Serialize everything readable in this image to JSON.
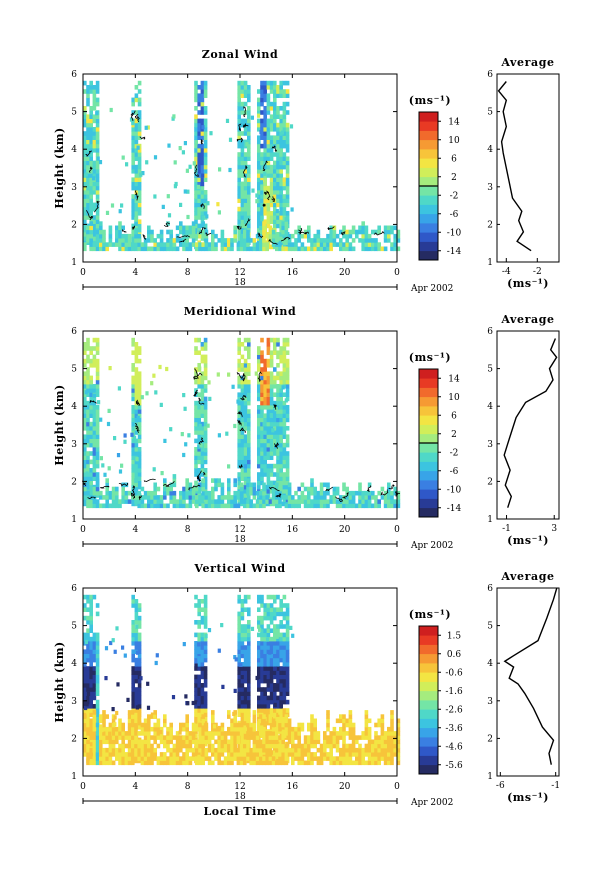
{
  "panels": [
    {
      "title": "Zonal Wind",
      "colorbar": {
        "unit": "(ms⁻¹)",
        "ticks": [
          "14",
          "10",
          "6",
          "2",
          "-2",
          "-6",
          "-10",
          "-14"
        ],
        "range": [
          -16,
          16
        ]
      },
      "heatmap": {
        "type": "heatmap",
        "x_range_hours": [
          0,
          24
        ],
        "y_range_km": [
          1,
          6
        ],
        "data_coverage_hours": [
          [
            0,
            1.2
          ],
          [
            3.7,
            4.4
          ],
          [
            8.5,
            9.4
          ],
          [
            11.8,
            12.6
          ],
          [
            13.3,
            15.7
          ]
        ],
        "dominant_values": "approximately -4 to -8 ms⁻¹, isolated values up to +8"
      },
      "average": {
        "title": "Average",
        "xticks": [
          "-4",
          "-2"
        ],
        "xlim": [
          -4.6,
          -0.6
        ],
        "xlabel": "(ms⁻¹)",
        "profile": [
          [
            -2.4,
            1.3
          ],
          [
            -3.3,
            1.55
          ],
          [
            -2.9,
            1.8
          ],
          [
            -3.2,
            2.1
          ],
          [
            -3.0,
            2.35
          ],
          [
            -3.6,
            2.7
          ],
          [
            -3.8,
            3.1
          ],
          [
            -4.0,
            3.5
          ],
          [
            -4.2,
            3.9
          ],
          [
            -4.3,
            4.2
          ],
          [
            -4.0,
            4.6
          ],
          [
            -4.2,
            5.0
          ],
          [
            -4.0,
            5.3
          ],
          [
            -4.5,
            5.55
          ],
          [
            -4.0,
            5.8
          ]
        ]
      },
      "x_ticks": [
        "0",
        "4",
        "8",
        "12",
        "16",
        "20",
        "0"
      ],
      "day_label": "18",
      "month_label": "Apr 2002",
      "y_ticks": [
        "1",
        "2",
        "3",
        "4",
        "5",
        "6"
      ],
      "ylabel": "Height (km)"
    },
    {
      "title": "Meridional Wind",
      "colorbar": {
        "unit": "(ms⁻¹)",
        "ticks": [
          "14",
          "10",
          "6",
          "2",
          "-2",
          "-6",
          "-10",
          "-14"
        ],
        "range": [
          -16,
          16
        ]
      },
      "heatmap": {
        "type": "heatmap",
        "x_range_hours": [
          0,
          24
        ],
        "y_range_km": [
          1,
          6
        ],
        "data_coverage_hours": [
          [
            0,
            1.2
          ],
          [
            3.7,
            4.4
          ],
          [
            8.5,
            9.4
          ],
          [
            11.8,
            12.6
          ],
          [
            13.3,
            15.7
          ]
        ],
        "dominant_values": "approximately -2 to -6 ms⁻¹ near surface, +2 to +8 aloft"
      },
      "average": {
        "title": "Average",
        "xticks": [
          "-1",
          "3"
        ],
        "xlim": [
          -1.8,
          3.4
        ],
        "xlabel": "(ms⁻¹)",
        "profile": [
          [
            -0.9,
            1.3
          ],
          [
            -0.6,
            1.6
          ],
          [
            -1.1,
            1.9
          ],
          [
            -0.7,
            2.3
          ],
          [
            -1.2,
            2.7
          ],
          [
            -0.9,
            3.0
          ],
          [
            -0.6,
            3.3
          ],
          [
            -0.2,
            3.7
          ],
          [
            0.6,
            4.1
          ],
          [
            2.3,
            4.4
          ],
          [
            2.9,
            4.7
          ],
          [
            2.6,
            5.0
          ],
          [
            3.2,
            5.3
          ],
          [
            2.7,
            5.5
          ],
          [
            3.1,
            5.8
          ]
        ]
      },
      "x_ticks": [
        "0",
        "4",
        "8",
        "12",
        "16",
        "20",
        "0"
      ],
      "day_label": "18",
      "month_label": "Apr 2002",
      "y_ticks": [
        "1",
        "2",
        "3",
        "4",
        "5",
        "6"
      ],
      "ylabel": "Height (km)"
    },
    {
      "title": "Vertical Wind",
      "colorbar": {
        "unit": "(ms⁻¹)",
        "ticks": [
          "1.5",
          "0.6",
          "-0.6",
          "-1.6",
          "-2.6",
          "-3.6",
          "-4.6",
          "-5.6"
        ],
        "range": [
          -6,
          2
        ]
      },
      "heatmap": {
        "type": "heatmap",
        "x_range_hours": [
          0,
          24
        ],
        "y_range_km": [
          1,
          6
        ],
        "data_coverage_hours": [
          [
            0,
            1.2
          ],
          [
            3.7,
            4.4
          ],
          [
            8.5,
            9.4
          ],
          [
            11.8,
            12.6
          ],
          [
            13.3,
            15.7
          ]
        ],
        "dominant_values": "approximately -5.6 ms⁻¹ in columns from 1.4 to 4.5 km, near 0 ms⁻¹ below 2.7 km"
      },
      "average": {
        "title": "Average",
        "xticks": [
          "-6",
          "-1"
        ],
        "xlim": [
          -6.3,
          -0.7
        ],
        "xlabel": "(ms⁻¹)",
        "profile": [
          [
            -1.4,
            1.3
          ],
          [
            -1.6,
            1.6
          ],
          [
            -1.2,
            1.95
          ],
          [
            -2.2,
            2.3
          ],
          [
            -3.0,
            2.8
          ],
          [
            -3.8,
            3.2
          ],
          [
            -4.4,
            3.45
          ],
          [
            -5.2,
            3.6
          ],
          [
            -4.8,
            3.9
          ],
          [
            -5.6,
            4.05
          ],
          [
            -4.8,
            4.2
          ],
          [
            -2.6,
            4.6
          ],
          [
            -1.8,
            5.2
          ],
          [
            -1.2,
            5.7
          ],
          [
            -0.9,
            6.0
          ]
        ]
      },
      "x_ticks": [
        "0",
        "4",
        "8",
        "12",
        "16",
        "20",
        "0"
      ],
      "day_label": "18",
      "month_label": "Apr 2002",
      "y_ticks": [
        "1",
        "2",
        "3",
        "4",
        "5",
        "6"
      ],
      "ylabel": "Height (km)",
      "xlabel": "Local Time"
    }
  ],
  "colors": {
    "ramp": [
      "#252b62",
      "#283b96",
      "#2f58c8",
      "#3a7fe2",
      "#38a4e8",
      "#3cc4e0",
      "#4fd8c8",
      "#74e5a6",
      "#a5ec7e",
      "#d1ee5a",
      "#f3e543",
      "#f7c43a",
      "#f69a33",
      "#f16a2c",
      "#e83a24",
      "#cf1f1f"
    ]
  }
}
